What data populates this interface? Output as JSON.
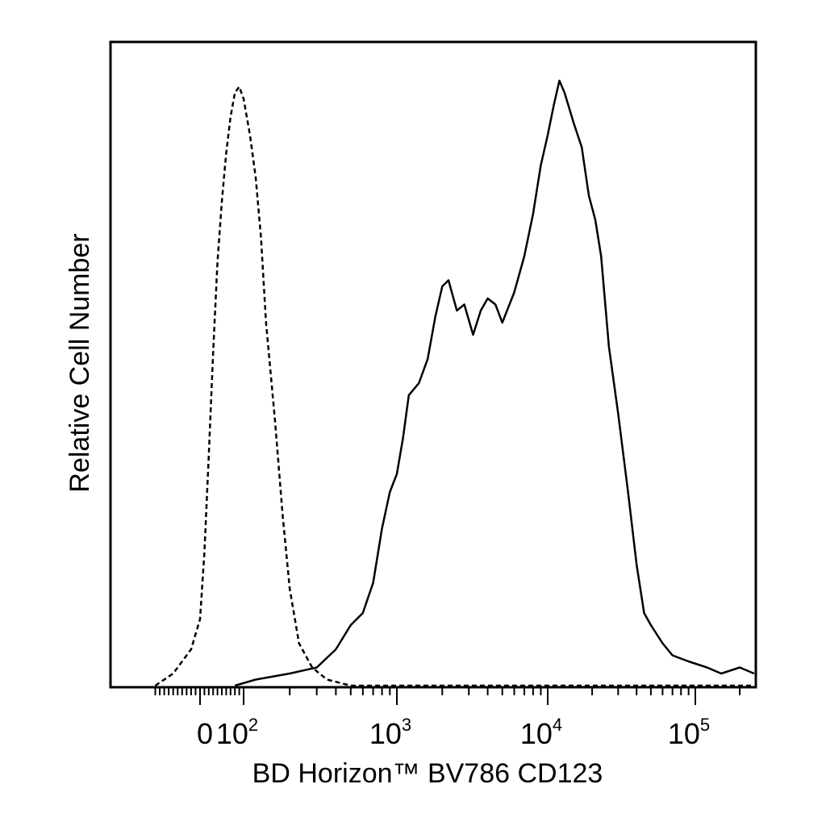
{
  "chart_data": {
    "type": "line",
    "xlabel": "BD Horizon™ BV786 CD123",
    "ylabel": "Relative Cell Number",
    "x_scale": "biexponential",
    "xlim": [
      -200,
      250000
    ],
    "ylim": [
      0,
      100
    ],
    "grid": false,
    "legend": "none",
    "x_tick_labels": [
      {
        "value": 0,
        "base": "0",
        "exp": ""
      },
      {
        "value": 100,
        "base": "10",
        "exp": "2"
      },
      {
        "value": 1000,
        "base": "10",
        "exp": "3"
      },
      {
        "value": 10000,
        "base": "10",
        "exp": "4"
      },
      {
        "value": 100000,
        "base": "10",
        "exp": "5"
      }
    ],
    "series": [
      {
        "style": "dashed",
        "points": [
          [
            -100,
            0
          ],
          [
            -60,
            2
          ],
          [
            -20,
            6
          ],
          [
            0,
            11
          ],
          [
            10,
            22
          ],
          [
            20,
            38
          ],
          [
            30,
            55
          ],
          [
            40,
            70
          ],
          [
            50,
            80
          ],
          [
            60,
            88
          ],
          [
            70,
            94
          ],
          [
            80,
            98
          ],
          [
            90,
            99
          ],
          [
            100,
            97
          ],
          [
            110,
            91
          ],
          [
            120,
            84
          ],
          [
            130,
            74
          ],
          [
            140,
            60
          ],
          [
            160,
            44
          ],
          [
            180,
            28
          ],
          [
            200,
            16
          ],
          [
            230,
            7
          ],
          [
            280,
            3
          ],
          [
            350,
            1
          ],
          [
            500,
            0
          ],
          [
            1000,
            0
          ],
          [
            10000,
            0
          ],
          [
            250000,
            0
          ]
        ]
      },
      {
        "style": "solid",
        "points": [
          [
            80,
            0
          ],
          [
            120,
            1
          ],
          [
            200,
            2
          ],
          [
            300,
            3
          ],
          [
            400,
            6
          ],
          [
            500,
            10
          ],
          [
            600,
            12
          ],
          [
            700,
            17
          ],
          [
            800,
            26
          ],
          [
            900,
            32
          ],
          [
            1000,
            35
          ],
          [
            1100,
            41
          ],
          [
            1200,
            48
          ],
          [
            1400,
            50
          ],
          [
            1600,
            54
          ],
          [
            1800,
            61
          ],
          [
            2000,
            66
          ],
          [
            2200,
            67
          ],
          [
            2500,
            62
          ],
          [
            2800,
            63
          ],
          [
            3200,
            58
          ],
          [
            3600,
            62
          ],
          [
            4000,
            64
          ],
          [
            4500,
            63
          ],
          [
            5000,
            60
          ],
          [
            6000,
            65
          ],
          [
            7000,
            71
          ],
          [
            8000,
            78
          ],
          [
            9000,
            86
          ],
          [
            10000,
            91
          ],
          [
            11000,
            96
          ],
          [
            12000,
            100
          ],
          [
            13000,
            98
          ],
          [
            15000,
            93
          ],
          [
            17000,
            89
          ],
          [
            19000,
            81
          ],
          [
            21000,
            77
          ],
          [
            23000,
            71
          ],
          [
            26000,
            56
          ],
          [
            30000,
            45
          ],
          [
            35000,
            32
          ],
          [
            40000,
            20
          ],
          [
            45000,
            12
          ],
          [
            50000,
            10
          ],
          [
            60000,
            7
          ],
          [
            70000,
            5
          ],
          [
            90000,
            4
          ],
          [
            120000,
            3
          ],
          [
            150000,
            2
          ],
          [
            200000,
            3
          ],
          [
            250000,
            2
          ]
        ]
      }
    ]
  }
}
